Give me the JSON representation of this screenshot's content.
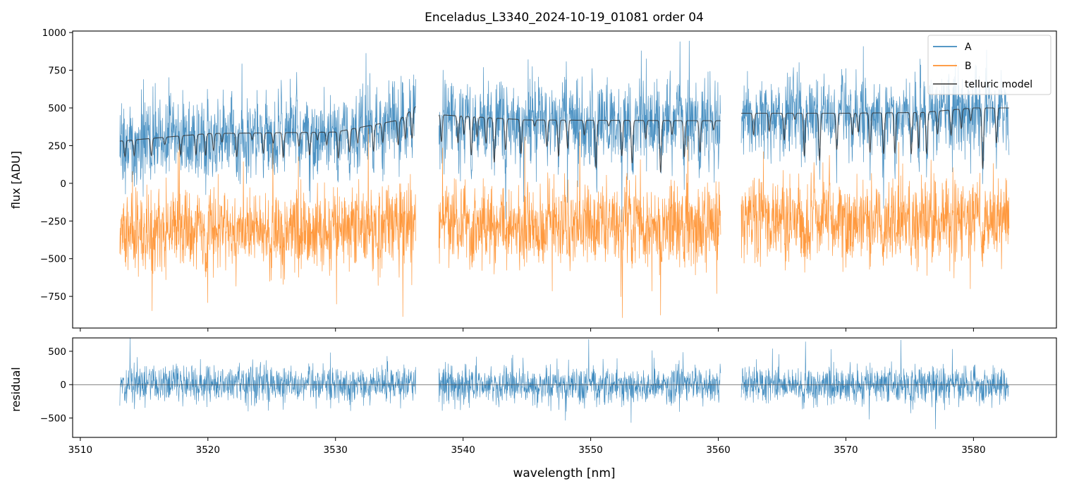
{
  "title": "Enceladus_L3340_2024-10-19_01081  order 04",
  "colors": {
    "A": "#1f77b4",
    "B": "#ff7f0e",
    "model": "#333333",
    "axis": "#000000",
    "zero_line": "#555555"
  },
  "chart_data": [
    {
      "type": "line",
      "panel": "top",
      "title": "Enceladus_L3340_2024-10-19_01081  order 04",
      "xlabel": "",
      "ylabel": "flux [ADU]",
      "xlim": [
        3509.4,
        3586.5
      ],
      "ylim": [
        -960,
        1010
      ],
      "yticks": [
        -750,
        -500,
        -250,
        0,
        250,
        500,
        750,
        1000
      ],
      "ytick_labels": [
        "−750",
        "−500",
        "−250",
        "0",
        "250",
        "500",
        "750",
        "1000"
      ],
      "legend": {
        "position": "top-right",
        "entries": [
          "A",
          "B",
          "telluric model"
        ]
      },
      "segments": [
        [
          3513.1,
          3536.3
        ],
        [
          3538.1,
          3560.2
        ],
        [
          3561.8,
          3582.8
        ]
      ],
      "series": [
        {
          "name": "A",
          "mean": 280,
          "spread": 240
        },
        {
          "name": "B",
          "mean": -300,
          "spread": 260
        },
        {
          "name": "telluric model",
          "continuum": [
            [
              3513.1,
              280
            ],
            [
              3520,
              330
            ],
            [
              3530,
              340
            ],
            [
              3535,
              420
            ],
            [
              3536.3,
              510
            ],
            [
              3538.1,
              455
            ],
            [
              3545,
              420
            ],
            [
              3560.2,
              415
            ],
            [
              3561.8,
              465
            ],
            [
              3570,
              465
            ],
            [
              3576,
              470
            ],
            [
              3580,
              500
            ],
            [
              3582.8,
              500
            ]
          ]
        }
      ]
    },
    {
      "type": "line",
      "panel": "bottom",
      "xlabel": "wavelength [nm]",
      "ylabel": "residual",
      "xlim": [
        3509.4,
        3586.5
      ],
      "ylim": [
        -790,
        700
      ],
      "xticks": [
        3510,
        3520,
        3530,
        3540,
        3550,
        3560,
        3570,
        3580
      ],
      "xtick_labels": [
        "3510",
        "3520",
        "3530",
        "3540",
        "3550",
        "3560",
        "3570",
        "3580"
      ],
      "yticks": [
        -500,
        0,
        500
      ],
      "ytick_labels": [
        "−500",
        "0",
        "500"
      ],
      "series": [
        {
          "name": "residual",
          "mean": 0,
          "spread": 230
        }
      ]
    }
  ]
}
